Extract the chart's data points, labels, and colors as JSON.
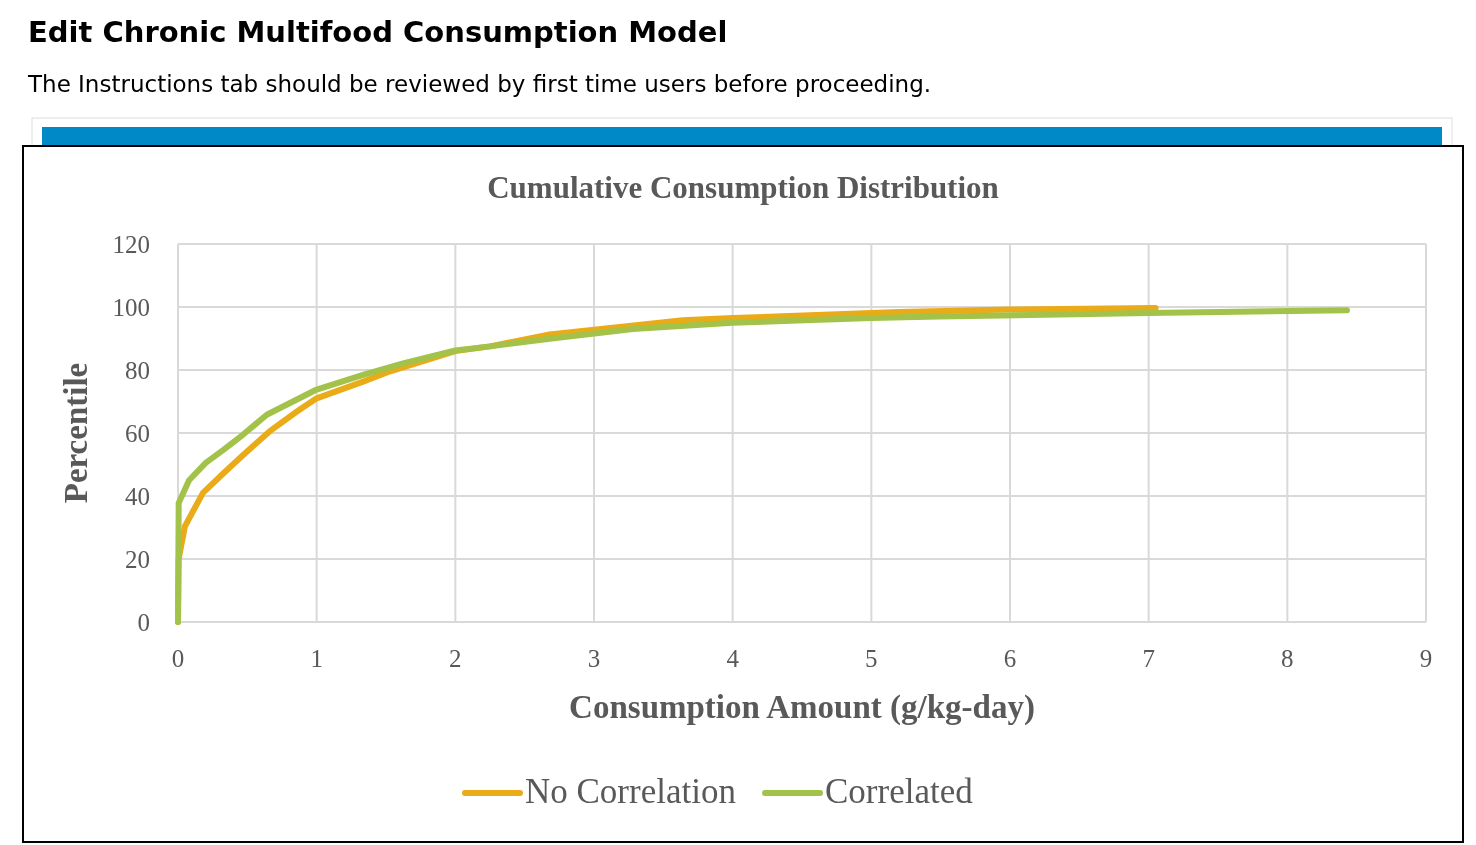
{
  "chart_data": {
    "type": "line",
    "title": "Cumulative Consumption Distribution",
    "xlabel": "Consumption Amount (g/kg-day)",
    "ylabel": "Percentile",
    "annotations": [
      "Edit Chronic Multifood Consumption Model",
      "The Instructions tab should be reviewed by first time users before proceeding."
    ],
    "xlim": [
      0,
      9
    ],
    "xticks": [
      0,
      1,
      2,
      3,
      4,
      5,
      6,
      7,
      8,
      9
    ],
    "ylim": [
      0,
      120
    ],
    "yticks": [
      0,
      20,
      40,
      60,
      80,
      100,
      120
    ],
    "grid": true,
    "legend": "bottom",
    "line_style": "solid",
    "series": [
      {
        "name": "No Correlation",
        "color": "#eaab18",
        "x": [
          0,
          0.005,
          0.05,
          0.18,
          0.33,
          0.47,
          0.66,
          0.86,
          1.0,
          1.34,
          1.53,
          2.0,
          2.25,
          2.68,
          3.64,
          4.0,
          5.0,
          5.2,
          6.0,
          7.05
        ],
        "values": [
          0,
          20,
          30.4,
          41,
          47.3,
          53,
          60.5,
          66.9,
          71,
          76.4,
          79.6,
          86,
          87.5,
          91.3,
          95.8,
          96.5,
          98.1,
          98.4,
          99.2,
          99.7
        ]
      },
      {
        "name": "Correlated",
        "color": "#a3c24a",
        "x": [
          0,
          0.005,
          0.08,
          0.2,
          0.33,
          0.47,
          0.64,
          1.0,
          1.34,
          1.63,
          2.0,
          2.25,
          2.68,
          3.28,
          4.0,
          5.0,
          5.49,
          7.0,
          8.43
        ],
        "values": [
          0,
          37.8,
          45,
          50.5,
          54.7,
          59.5,
          65.8,
          73.8,
          78.5,
          82.2,
          86.2,
          87.5,
          89.9,
          93,
          95,
          96.5,
          97,
          98.1,
          99
        ]
      }
    ]
  }
}
